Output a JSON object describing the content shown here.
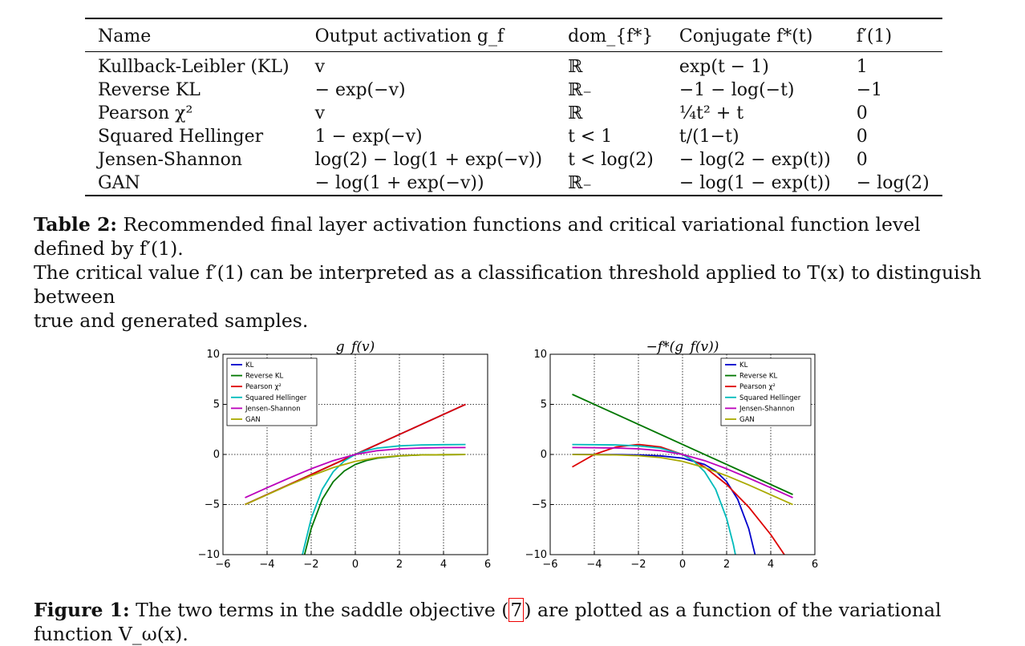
{
  "table": {
    "headers": [
      "Name",
      "Output activation g_f",
      "dom_{f*}",
      "Conjugate f*(t)",
      "f′(1)"
    ],
    "rows": [
      [
        "Kullback-Leibler (KL)",
        "v",
        "ℝ",
        "exp(t − 1)",
        "1"
      ],
      [
        "Reverse KL",
        "− exp(−v)",
        "ℝ₋",
        "−1 − log(−t)",
        "−1"
      ],
      [
        "Pearson χ²",
        "v",
        "ℝ",
        "¼t² + t",
        "0"
      ],
      [
        "Squared Hellinger",
        "1 − exp(−v)",
        "t < 1",
        "t/(1−t)",
        "0"
      ],
      [
        "Jensen-Shannon",
        "log(2) − log(1 + exp(−v))",
        "t < log(2)",
        "− log(2 − exp(t))",
        "0"
      ],
      [
        "GAN",
        "− log(1 + exp(−v))",
        "ℝ₋",
        "− log(1 − exp(t))",
        "− log(2)"
      ]
    ]
  },
  "table_caption": {
    "label": "Table 2:",
    "line1": "Recommended final layer activation functions and critical variational function level defined by f′(1).",
    "line2": "The critical value f′(1) can be interpreted as a classification threshold applied to T(x) to distinguish between",
    "line3": "true and generated samples."
  },
  "figure_caption": {
    "label": "Figure 1:",
    "text_before": "The two terms in the saddle objective (",
    "ref": "7",
    "text_after": ") are plotted as a function of the variational function V_ω(x)."
  },
  "chart_data": [
    {
      "type": "line",
      "title": "g_f(v)",
      "xlim": [
        -6,
        6
      ],
      "ylim": [
        -10,
        10
      ],
      "xticks": [
        "−6",
        "−4",
        "−2",
        "0",
        "2",
        "4",
        "6"
      ],
      "yticks": [
        "10",
        "5",
        "0",
        "−5",
        "−10"
      ],
      "grid": true,
      "legend": "top-left",
      "series": [
        {
          "name": "KL",
          "color": "#0000cc",
          "x": [
            -5,
            -2.5,
            0,
            2.5,
            5
          ],
          "y": [
            -5,
            -2.5,
            0,
            2.5,
            5
          ]
        },
        {
          "name": "Reverse KL",
          "color": "#007700",
          "x": [
            -2.3,
            -2,
            -1.5,
            -1,
            -0.5,
            0,
            0.5,
            1,
            2,
            3,
            4,
            5
          ],
          "y": [
            -9.97,
            -7.39,
            -4.48,
            -2.72,
            -1.65,
            -1,
            -0.61,
            -0.37,
            -0.14,
            -0.05,
            -0.02,
            -0.01
          ]
        },
        {
          "name": "Pearson χ²",
          "color": "#dd0000",
          "x": [
            -5,
            -2.5,
            0,
            2.5,
            5
          ],
          "y": [
            -5,
            -2.5,
            0,
            2.5,
            5
          ]
        },
        {
          "name": "Squared Hellinger",
          "color": "#00bbbb",
          "x": [
            -2.4,
            -2,
            -1.5,
            -1,
            -0.5,
            0,
            0.5,
            1,
            2,
            3,
            4,
            5
          ],
          "y": [
            -10.02,
            -6.39,
            -3.48,
            -1.72,
            -0.65,
            0,
            0.39,
            0.63,
            0.86,
            0.95,
            0.98,
            0.99
          ]
        },
        {
          "name": "Jensen-Shannon",
          "color": "#bb00bb",
          "x": [
            -5,
            -4,
            -3,
            -2,
            -1,
            0,
            1,
            2,
            3,
            4,
            5
          ],
          "y": [
            -4.31,
            -3.33,
            -2.36,
            -1.43,
            -0.62,
            0,
            0.38,
            0.56,
            0.64,
            0.68,
            0.69
          ]
        },
        {
          "name": "GAN",
          "color": "#aaaa00",
          "x": [
            -5,
            -4,
            -3,
            -2,
            -1,
            0,
            1,
            2,
            3,
            4,
            5
          ],
          "y": [
            -5.01,
            -4.02,
            -3.05,
            -2.13,
            -1.31,
            -0.69,
            -0.31,
            -0.13,
            -0.05,
            -0.02,
            -0.01
          ]
        }
      ]
    },
    {
      "type": "line",
      "title": "−f*(g_f(v))",
      "xlim": [
        -6,
        6
      ],
      "ylim": [
        -10,
        10
      ],
      "xticks": [
        "−6",
        "−4",
        "−2",
        "0",
        "2",
        "4",
        "6"
      ],
      "yticks": [
        "10",
        "5",
        "0",
        "−5",
        "−10"
      ],
      "grid": true,
      "legend": "top-right",
      "series": [
        {
          "name": "KL",
          "color": "#0000cc",
          "x": [
            -5,
            -3,
            -2,
            -1,
            0,
            1,
            1.5,
            2,
            2.5,
            3,
            3.4
          ],
          "y": [
            -0.0025,
            -0.018,
            -0.05,
            -0.14,
            -0.37,
            -1,
            -1.65,
            -2.72,
            -4.48,
            -7.39,
            -11.02
          ]
        },
        {
          "name": "Reverse KL",
          "color": "#007700",
          "x": [
            -5,
            5
          ],
          "y": [
            6,
            -4
          ]
        },
        {
          "name": "Pearson χ²",
          "color": "#dd0000",
          "x": [
            -5,
            -4,
            -3,
            -2,
            -1,
            0,
            1,
            2,
            3,
            4,
            5
          ],
          "y": [
            -1.25,
            0,
            0.75,
            1,
            0.75,
            0,
            -1.25,
            -3,
            -5.25,
            -8,
            -11.25
          ]
        },
        {
          "name": "Squared Hellinger",
          "color": "#00bbbb",
          "x": [
            -5,
            -3,
            -2,
            -1,
            0,
            0.5,
            1,
            1.5,
            2,
            2.3,
            2.45
          ],
          "y": [
            0.99,
            0.95,
            0.86,
            0.63,
            0,
            -0.65,
            -1.72,
            -3.48,
            -6.39,
            -8.97,
            -10.59
          ]
        },
        {
          "name": "Jensen-Shannon",
          "color": "#bb00bb",
          "x": [
            -5,
            -4,
            -3,
            -2,
            -1,
            0,
            1,
            2,
            3,
            4,
            5
          ],
          "y": [
            0.69,
            0.67,
            0.64,
            0.56,
            0.38,
            0,
            -0.62,
            -1.43,
            -2.36,
            -3.33,
            -4.31
          ]
        },
        {
          "name": "GAN",
          "color": "#aaaa00",
          "x": [
            -5,
            -4,
            -3,
            -2,
            -1,
            0,
            1,
            2,
            3,
            4,
            5
          ],
          "y": [
            -0.01,
            -0.02,
            -0.05,
            -0.13,
            -0.31,
            -0.69,
            -1.31,
            -2.13,
            -3.05,
            -4.02,
            -5.01
          ]
        }
      ]
    }
  ]
}
